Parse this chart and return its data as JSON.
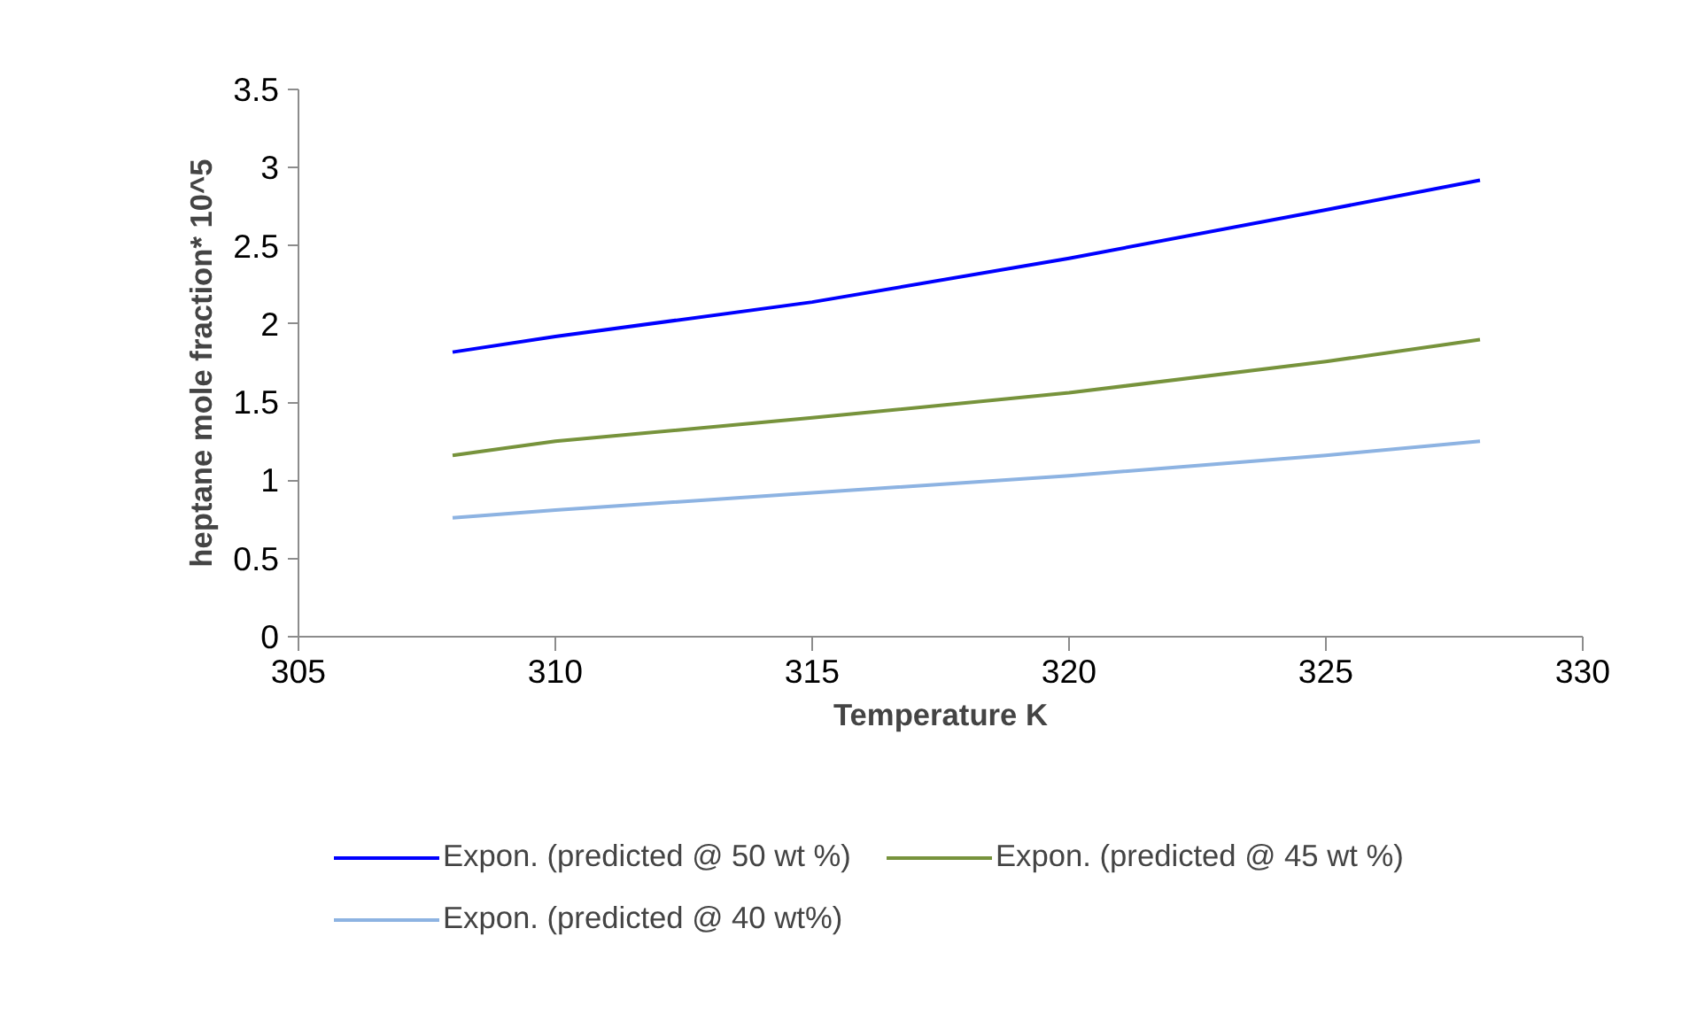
{
  "chart_data": {
    "type": "line",
    "xlabel": "Temperature K",
    "ylabel": "heptane mole fraction* 10^5",
    "x": [
      308,
      310,
      315,
      320,
      325,
      328
    ],
    "series": [
      {
        "name": "Expon. (predicted @ 50 wt %)",
        "color": "#0000ff",
        "values": [
          1.82,
          1.92,
          2.14,
          2.42,
          2.73,
          2.92
        ]
      },
      {
        "name": "Expon. (predicted @ 45 wt %)",
        "color": "#77933c",
        "values": [
          1.16,
          1.25,
          1.4,
          1.56,
          1.76,
          1.9
        ]
      },
      {
        "name": "Expon. (predicted @ 40 wt%)",
        "color": "#8db3e2",
        "values": [
          0.76,
          0.81,
          0.92,
          1.03,
          1.16,
          1.25
        ]
      }
    ],
    "xlim": [
      305,
      330
    ],
    "xticks": [
      305,
      310,
      315,
      320,
      325,
      330
    ],
    "ylim": [
      0,
      3.5
    ],
    "yticks": [
      0,
      0.5,
      1,
      1.5,
      2,
      2.5,
      3,
      3.5
    ],
    "grid": false,
    "legend": "bottom",
    "marker": "none",
    "line_style": "solid"
  }
}
